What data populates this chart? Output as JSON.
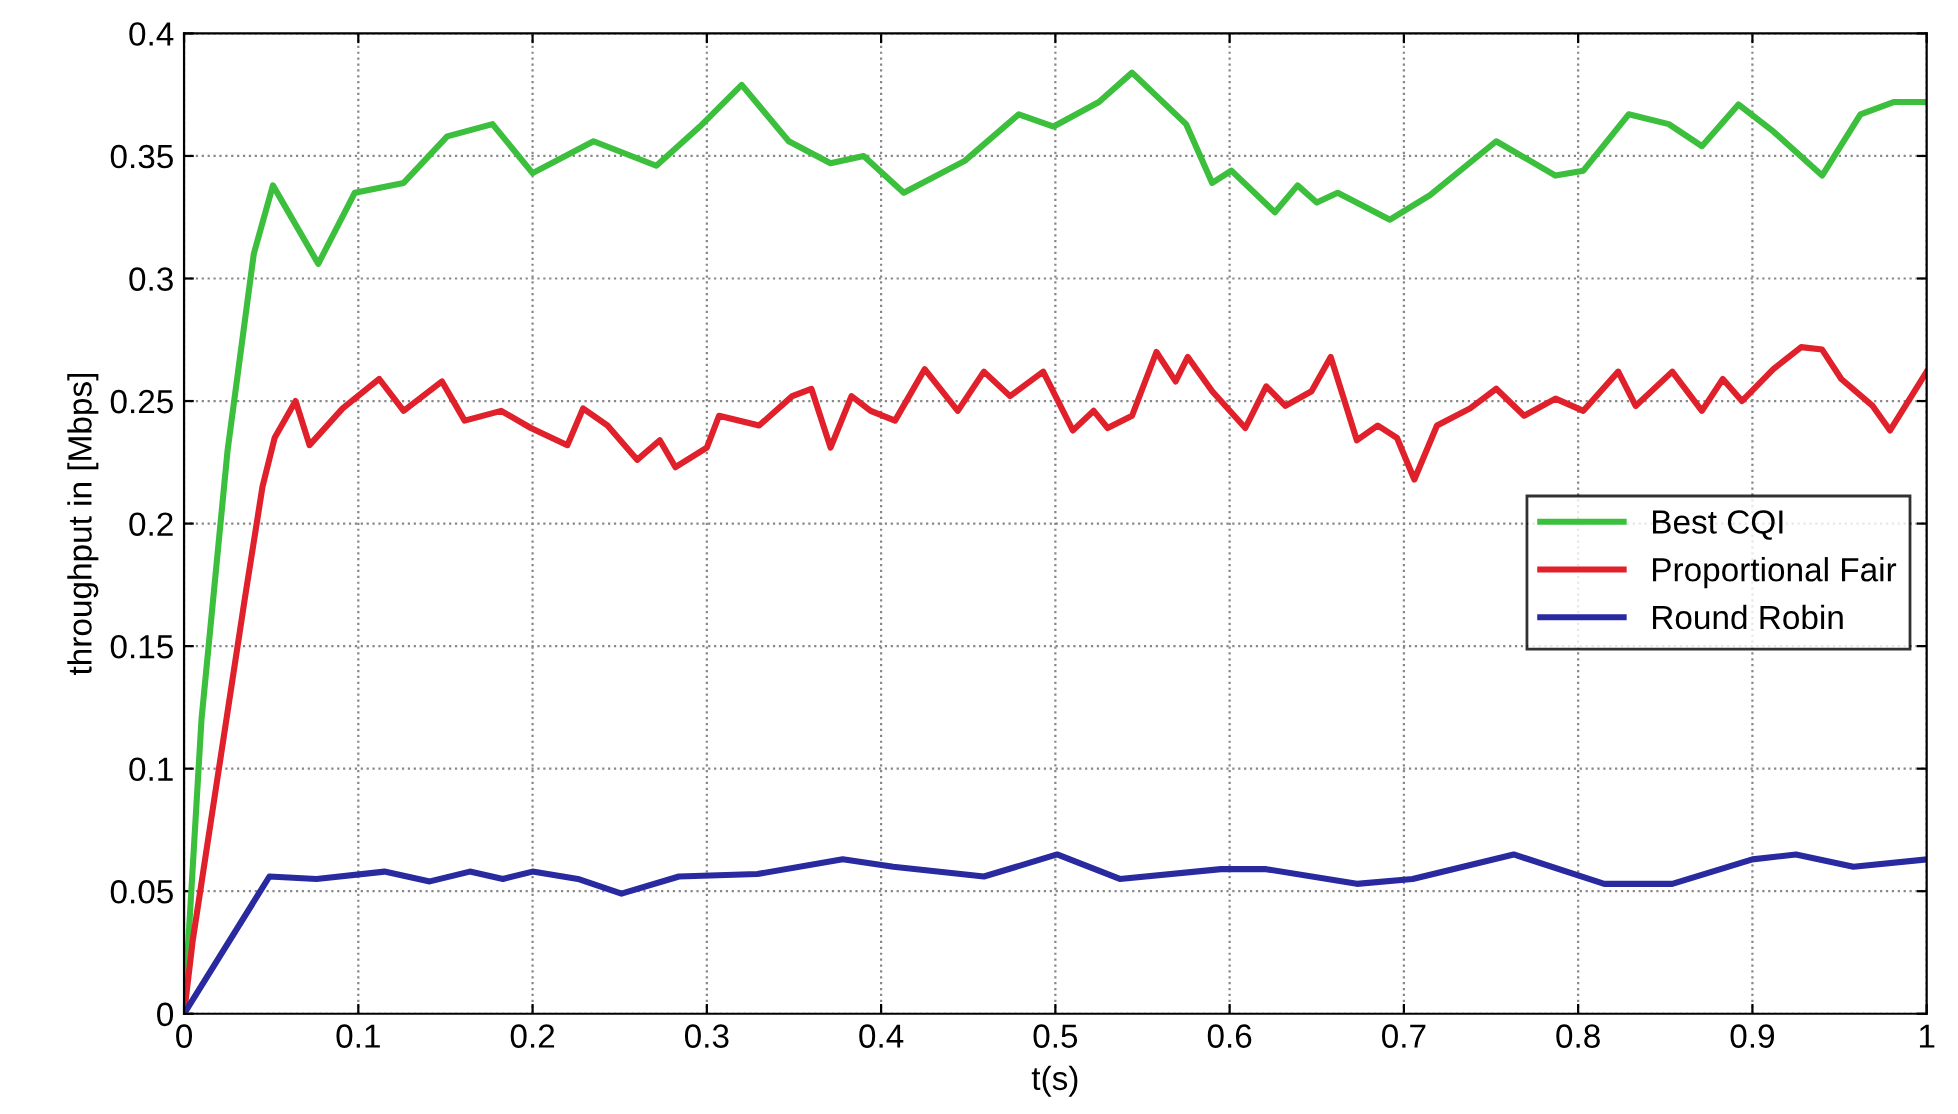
{
  "chart_data": {
    "type": "line",
    "xlabel": "t(s)",
    "ylabel": "throughput in [Mbps]",
    "xlim": [
      0,
      1
    ],
    "ylim": [
      0,
      0.4
    ],
    "xticks": [
      0,
      0.1,
      0.2,
      0.3,
      0.4,
      0.5,
      0.6,
      0.7,
      0.8,
      0.9,
      1
    ],
    "yticks": [
      0,
      0.05,
      0.1,
      0.15,
      0.2,
      0.25,
      0.3,
      0.35,
      0.4
    ],
    "grid": true,
    "legend": "right",
    "line_style": "solid",
    "series": [
      {
        "name": "Best CQI",
        "color": "#3cbf3c",
        "x": [
          0,
          0.01,
          0.025,
          0.04,
          0.051,
          0.077,
          0.098,
          0.126,
          0.151,
          0.177,
          0.2,
          0.235,
          0.271,
          0.296,
          0.32,
          0.347,
          0.371,
          0.39,
          0.413,
          0.448,
          0.479,
          0.499,
          0.525,
          0.544,
          0.575,
          0.59,
          0.601,
          0.626,
          0.639,
          0.65,
          0.662,
          0.692,
          0.715,
          0.753,
          0.787,
          0.803,
          0.829,
          0.852,
          0.871,
          0.892,
          0.912,
          0.94,
          0.962,
          0.981,
          1
        ],
        "values": [
          0,
          0.12,
          0.23,
          0.31,
          0.338,
          0.306,
          0.335,
          0.339,
          0.358,
          0.363,
          0.343,
          0.356,
          0.346,
          0.362,
          0.379,
          0.356,
          0.347,
          0.35,
          0.335,
          0.348,
          0.367,
          0.362,
          0.372,
          0.384,
          0.363,
          0.339,
          0.344,
          0.327,
          0.338,
          0.331,
          0.335,
          0.324,
          0.334,
          0.356,
          0.342,
          0.344,
          0.367,
          0.363,
          0.354,
          0.371,
          0.36,
          0.342,
          0.367,
          0.372,
          0.372
        ]
      },
      {
        "name": "Proportional Fair",
        "color": "#e0202a",
        "x": [
          0,
          0.005,
          0.02,
          0.035,
          0.045,
          0.052,
          0.064,
          0.072,
          0.091,
          0.112,
          0.126,
          0.148,
          0.161,
          0.182,
          0.199,
          0.22,
          0.229,
          0.243,
          0.26,
          0.273,
          0.282,
          0.3,
          0.307,
          0.33,
          0.349,
          0.36,
          0.371,
          0.383,
          0.394,
          0.408,
          0.425,
          0.444,
          0.459,
          0.474,
          0.493,
          0.51,
          0.522,
          0.53,
          0.544,
          0.558,
          0.569,
          0.576,
          0.59,
          0.609,
          0.621,
          0.632,
          0.647,
          0.658,
          0.673,
          0.685,
          0.696,
          0.706,
          0.719,
          0.738,
          0.753,
          0.769,
          0.787,
          0.803,
          0.823,
          0.833,
          0.854,
          0.871,
          0.883,
          0.894,
          0.912,
          0.928,
          0.94,
          0.951,
          0.969,
          0.979,
          1
        ],
        "values": [
          0,
          0.03,
          0.1,
          0.17,
          0.215,
          0.235,
          0.25,
          0.232,
          0.247,
          0.259,
          0.246,
          0.258,
          0.242,
          0.246,
          0.239,
          0.232,
          0.247,
          0.24,
          0.226,
          0.234,
          0.223,
          0.231,
          0.244,
          0.24,
          0.252,
          0.255,
          0.231,
          0.252,
          0.246,
          0.242,
          0.263,
          0.246,
          0.262,
          0.252,
          0.262,
          0.238,
          0.246,
          0.239,
          0.244,
          0.27,
          0.258,
          0.268,
          0.254,
          0.239,
          0.256,
          0.248,
          0.254,
          0.268,
          0.234,
          0.24,
          0.235,
          0.218,
          0.24,
          0.247,
          0.255,
          0.244,
          0.251,
          0.246,
          0.262,
          0.248,
          0.262,
          0.246,
          0.259,
          0.25,
          0.263,
          0.272,
          0.271,
          0.259,
          0.248,
          0.238,
          0.262
        ]
      },
      {
        "name": "Round Robin",
        "color": "#2a2aa0",
        "x": [
          0,
          0.049,
          0.076,
          0.115,
          0.141,
          0.164,
          0.183,
          0.2,
          0.226,
          0.251,
          0.284,
          0.329,
          0.378,
          0.407,
          0.459,
          0.501,
          0.537,
          0.595,
          0.621,
          0.673,
          0.705,
          0.763,
          0.815,
          0.854,
          0.9,
          0.925,
          0.958,
          1
        ],
        "values": [
          0,
          0.056,
          0.055,
          0.058,
          0.054,
          0.058,
          0.055,
          0.058,
          0.055,
          0.049,
          0.056,
          0.057,
          0.063,
          0.06,
          0.056,
          0.065,
          0.055,
          0.059,
          0.059,
          0.053,
          0.055,
          0.065,
          0.053,
          0.053,
          0.063,
          0.065,
          0.06,
          0.063
        ]
      }
    ]
  }
}
